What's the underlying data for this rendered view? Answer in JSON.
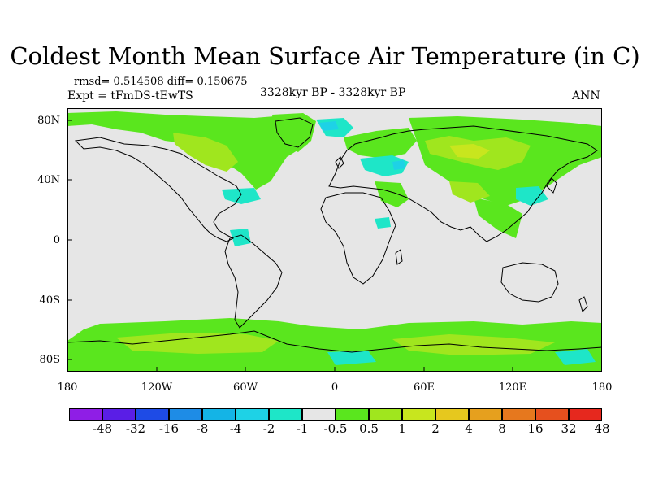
{
  "title": "Coldest Month Mean Surface Air Temperature (in C)",
  "stats": "rmsd= 0.514508 diff= 0.150675",
  "experiment": "Expt = tFmDS-tEwTS",
  "period": "3328kyr BP - 3328kyr BP",
  "season": "ANN",
  "lat_labels": [
    "80N",
    "40N",
    "0",
    "40S",
    "80S"
  ],
  "lon_labels": [
    "180",
    "120W",
    "60W",
    "0",
    "60E",
    "120E",
    "180"
  ],
  "colorbar": {
    "colors": [
      "#8f1ee6",
      "#5a1ee6",
      "#1e4be6",
      "#1e8ce6",
      "#14b4e6",
      "#1ed2e6",
      "#1ee6c8",
      "#e6e6e6",
      "#5ae61e",
      "#a0e61e",
      "#c8e61e",
      "#e6c81e",
      "#e6a01e",
      "#e6781e",
      "#e6501e",
      "#e6281e"
    ],
    "labels": [
      "-48",
      "-32",
      "-16",
      "-8",
      "-4",
      "-2",
      "-1",
      "-0.5",
      "0.5",
      "1",
      "2",
      "4",
      "8",
      "16",
      "32",
      "48"
    ]
  }
}
